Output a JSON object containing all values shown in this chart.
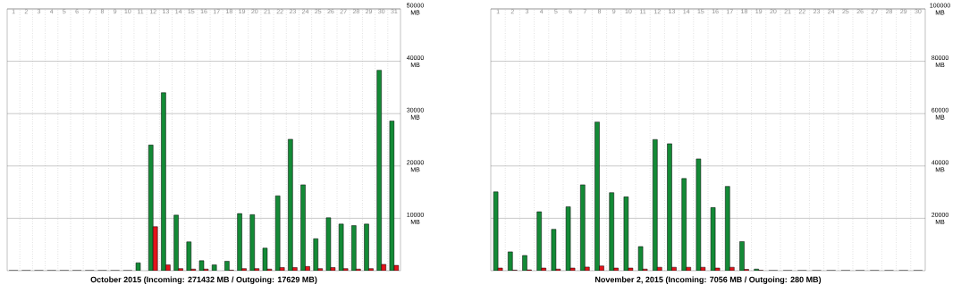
{
  "chart_data": [
    {
      "type": "bar",
      "title": "October 2015 (Incoming: 271432 MB / Outgoing: 17629 MB)",
      "categories": [
        "1",
        "2",
        "3",
        "4",
        "5",
        "6",
        "7",
        "8",
        "9",
        "10",
        "11",
        "12",
        "13",
        "14",
        "15",
        "16",
        "17",
        "18",
        "19",
        "20",
        "21",
        "22",
        "23",
        "24",
        "25",
        "26",
        "27",
        "28",
        "29",
        "30",
        "31"
      ],
      "series": [
        {
          "color": "#138a36",
          "values": [
            0,
            0,
            0,
            0,
            0,
            0,
            0,
            0,
            0,
            0,
            1500,
            24000,
            34000,
            10600,
            5500,
            1900,
            1100,
            1800,
            10900,
            10700,
            4300,
            14300,
            25100,
            16400,
            6100,
            10100,
            8900,
            8600,
            8900,
            38300,
            28600
          ]
        },
        {
          "color": "#e3141b",
          "values": [
            0,
            0,
            0,
            0,
            0,
            0,
            0,
            0,
            0,
            0,
            null,
            8400,
            1100,
            400,
            300,
            300,
            null,
            100,
            400,
            400,
            300,
            600,
            600,
            800,
            400,
            600,
            400,
            300,
            400,
            1200,
            1000
          ]
        }
      ],
      "ylim": [
        0,
        50000
      ],
      "yticks": [
        {
          "value": 10000,
          "label": "10000 MB"
        },
        {
          "value": 20000,
          "label": "20000 MB"
        },
        {
          "value": 30000,
          "label": "30000 MB"
        },
        {
          "value": 40000,
          "label": "40000 MB"
        },
        {
          "value": 50000,
          "label": "50000 MB"
        }
      ],
      "grid": true
    },
    {
      "type": "bar",
      "title": "November 2, 2015 (Incoming: 7056 MB / Outgoing: 280 MB)",
      "categories": [
        "1",
        "2",
        "3",
        "4",
        "5",
        "6",
        "7",
        "8",
        "9",
        "10",
        "11",
        "12",
        "13",
        "14",
        "15",
        "16",
        "17",
        "18",
        "19",
        "20",
        "21",
        "22",
        "23",
        "24",
        "25",
        "26",
        "27",
        "28",
        "29",
        "30"
      ],
      "series": [
        {
          "color": "#138a36",
          "values": [
            30100,
            7200,
            5800,
            22500,
            15800,
            24400,
            32800,
            56800,
            29800,
            28200,
            9200,
            50100,
            48500,
            35200,
            42700,
            24100,
            32200,
            11100,
            600,
            0,
            0,
            0,
            0,
            0,
            0,
            0,
            0,
            0,
            0,
            0
          ]
        },
        {
          "color": "#e3141b",
          "values": [
            1000,
            200,
            300,
            1000,
            600,
            1000,
            1400,
            1800,
            1000,
            1000,
            600,
            1300,
            1300,
            1300,
            1300,
            1000,
            1300,
            500,
            100,
            0,
            0,
            0,
            0,
            0,
            0,
            0,
            0,
            0,
            0,
            0
          ]
        }
      ],
      "ylim": [
        0,
        100000
      ],
      "yticks": [
        {
          "value": 20000,
          "label": "20000 MB"
        },
        {
          "value": 40000,
          "label": "40000 MB"
        },
        {
          "value": 60000,
          "label": "60000 MB"
        },
        {
          "value": 80000,
          "label": "80000 MB"
        },
        {
          "value": 100000,
          "label": "100000 MB"
        }
      ],
      "grid": true
    }
  ]
}
